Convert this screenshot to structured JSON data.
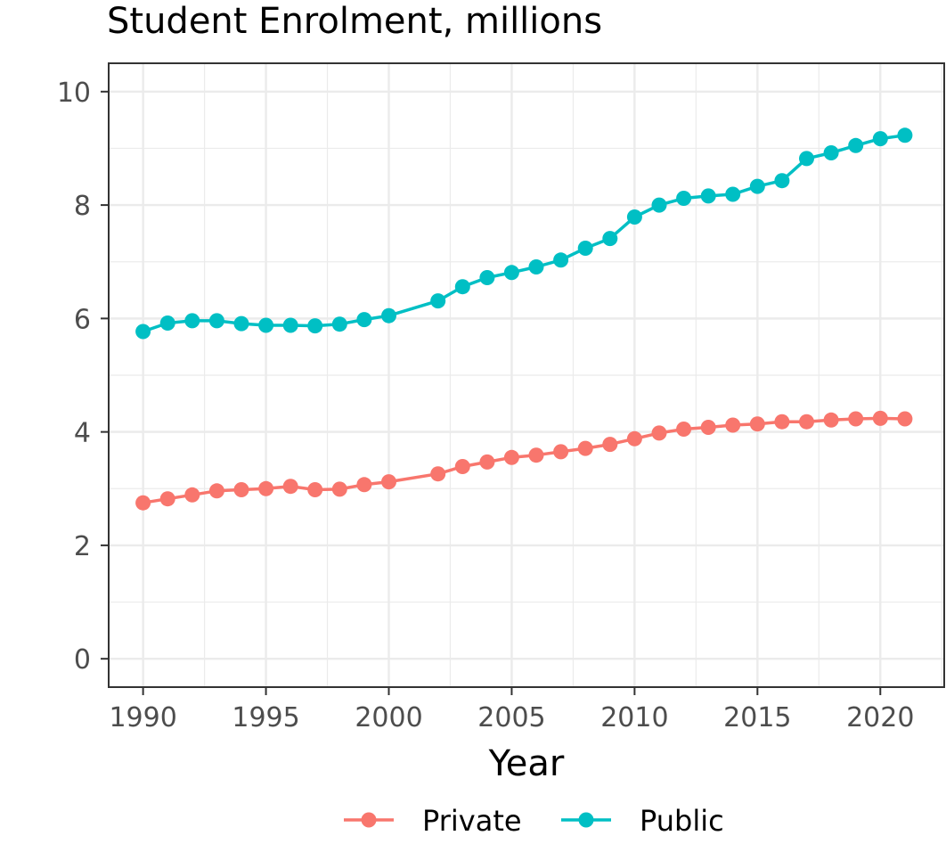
{
  "chart_data": {
    "type": "line",
    "title": "Student Enrolment, millions",
    "xlabel": "Year",
    "ylabel": "",
    "xlim": [
      1988.6,
      2022.6
    ],
    "ylim": [
      -0.5,
      10.5
    ],
    "x_ticks": [
      1990,
      1995,
      2000,
      2005,
      2010,
      2015,
      2020
    ],
    "y_ticks": [
      0,
      2,
      4,
      6,
      8,
      10
    ],
    "grid": true,
    "legend_position": "bottom",
    "series": [
      {
        "name": "Private",
        "color": "#F8766D",
        "x": [
          1990,
          1991,
          1992,
          1993,
          1994,
          1995,
          1996,
          1997,
          1998,
          1999,
          2000,
          2002,
          2003,
          2004,
          2005,
          2006,
          2007,
          2008,
          2009,
          2010,
          2011,
          2012,
          2013,
          2014,
          2015,
          2016,
          2017,
          2018,
          2019,
          2020,
          2021
        ],
        "y": [
          2.75,
          2.82,
          2.89,
          2.96,
          2.98,
          3.0,
          3.04,
          2.98,
          2.99,
          3.07,
          3.12,
          3.26,
          3.39,
          3.47,
          3.55,
          3.59,
          3.65,
          3.71,
          3.78,
          3.88,
          3.98,
          4.05,
          4.08,
          4.12,
          4.14,
          4.18,
          4.18,
          4.21,
          4.23,
          4.24,
          4.23
        ]
      },
      {
        "name": "Public",
        "color": "#00BFC4",
        "x": [
          1990,
          1991,
          1992,
          1993,
          1994,
          1995,
          1996,
          1997,
          1998,
          1999,
          2000,
          2002,
          2003,
          2004,
          2005,
          2006,
          2007,
          2008,
          2009,
          2010,
          2011,
          2012,
          2013,
          2014,
          2015,
          2016,
          2017,
          2018,
          2019,
          2020,
          2021
        ],
        "y": [
          5.77,
          5.92,
          5.96,
          5.96,
          5.91,
          5.88,
          5.88,
          5.87,
          5.9,
          5.98,
          6.05,
          6.31,
          6.56,
          6.72,
          6.81,
          6.91,
          7.03,
          7.24,
          7.41,
          7.79,
          8.0,
          8.12,
          8.16,
          8.19,
          8.33,
          8.43,
          8.82,
          8.92,
          9.05,
          9.17,
          9.23
        ]
      }
    ]
  }
}
